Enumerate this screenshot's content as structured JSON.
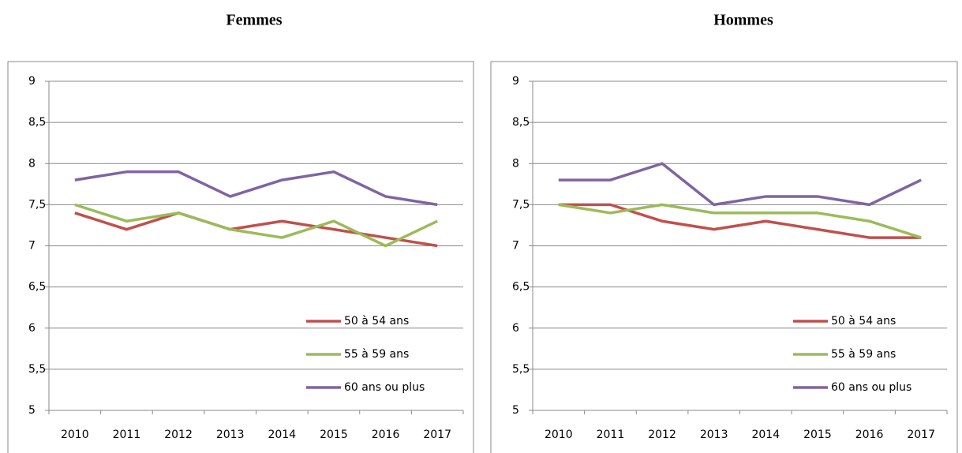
{
  "chart_data": [
    {
      "type": "line",
      "title": "Femmes",
      "categories": [
        "2010",
        "2011",
        "2012",
        "2013",
        "2014",
        "2015",
        "2016",
        "2017"
      ],
      "series": [
        {
          "name": "50 à 54 ans",
          "color": "#c0504d",
          "values": [
            7.4,
            7.2,
            7.4,
            7.2,
            7.3,
            7.2,
            7.1,
            7.0
          ]
        },
        {
          "name": "55 à 59 ans",
          "color": "#9bbb59",
          "values": [
            7.5,
            7.3,
            7.4,
            7.2,
            7.1,
            7.3,
            7.0,
            7.3
          ]
        },
        {
          "name": "60 ans ou plus",
          "color": "#8064a2",
          "values": [
            7.8,
            7.9,
            7.9,
            7.6,
            7.8,
            7.9,
            7.6,
            7.5
          ]
        }
      ],
      "ylim": [
        5,
        9
      ],
      "yticks": [
        5,
        {
          "value": 5.5,
          "label": "5,5"
        },
        6,
        {
          "value": 6.5,
          "label": "6,5"
        },
        7,
        {
          "value": 7.5,
          "label": "7,5"
        },
        8,
        {
          "value": 8.5,
          "label": "8,5"
        },
        9
      ],
      "grid": true,
      "legend": "lower right"
    },
    {
      "type": "line",
      "title": "Hommes",
      "categories": [
        "2010",
        "2011",
        "2012",
        "2013",
        "2014",
        "2015",
        "2016",
        "2017"
      ],
      "series": [
        {
          "name": "50 à 54 ans",
          "color": "#c0504d",
          "values": [
            7.5,
            7.5,
            7.3,
            7.2,
            7.3,
            7.2,
            7.1,
            7.1
          ]
        },
        {
          "name": "55 à 59 ans",
          "color": "#9bbb59",
          "values": [
            7.5,
            7.4,
            7.5,
            7.4,
            7.4,
            7.4,
            7.3,
            7.1
          ]
        },
        {
          "name": "60 ans ou plus",
          "color": "#8064a2",
          "values": [
            7.8,
            7.8,
            8.0,
            7.5,
            7.6,
            7.6,
            7.5,
            7.8
          ]
        }
      ],
      "ylim": [
        5,
        9
      ],
      "yticks": [
        5,
        {
          "value": 5.5,
          "label": "5,5"
        },
        6,
        {
          "value": 6.5,
          "label": "6,5"
        },
        7,
        {
          "value": 7.5,
          "label": "7,5"
        },
        8,
        {
          "value": 8.5,
          "label": "8,5"
        },
        9
      ],
      "grid": true,
      "legend": "lower right"
    }
  ]
}
